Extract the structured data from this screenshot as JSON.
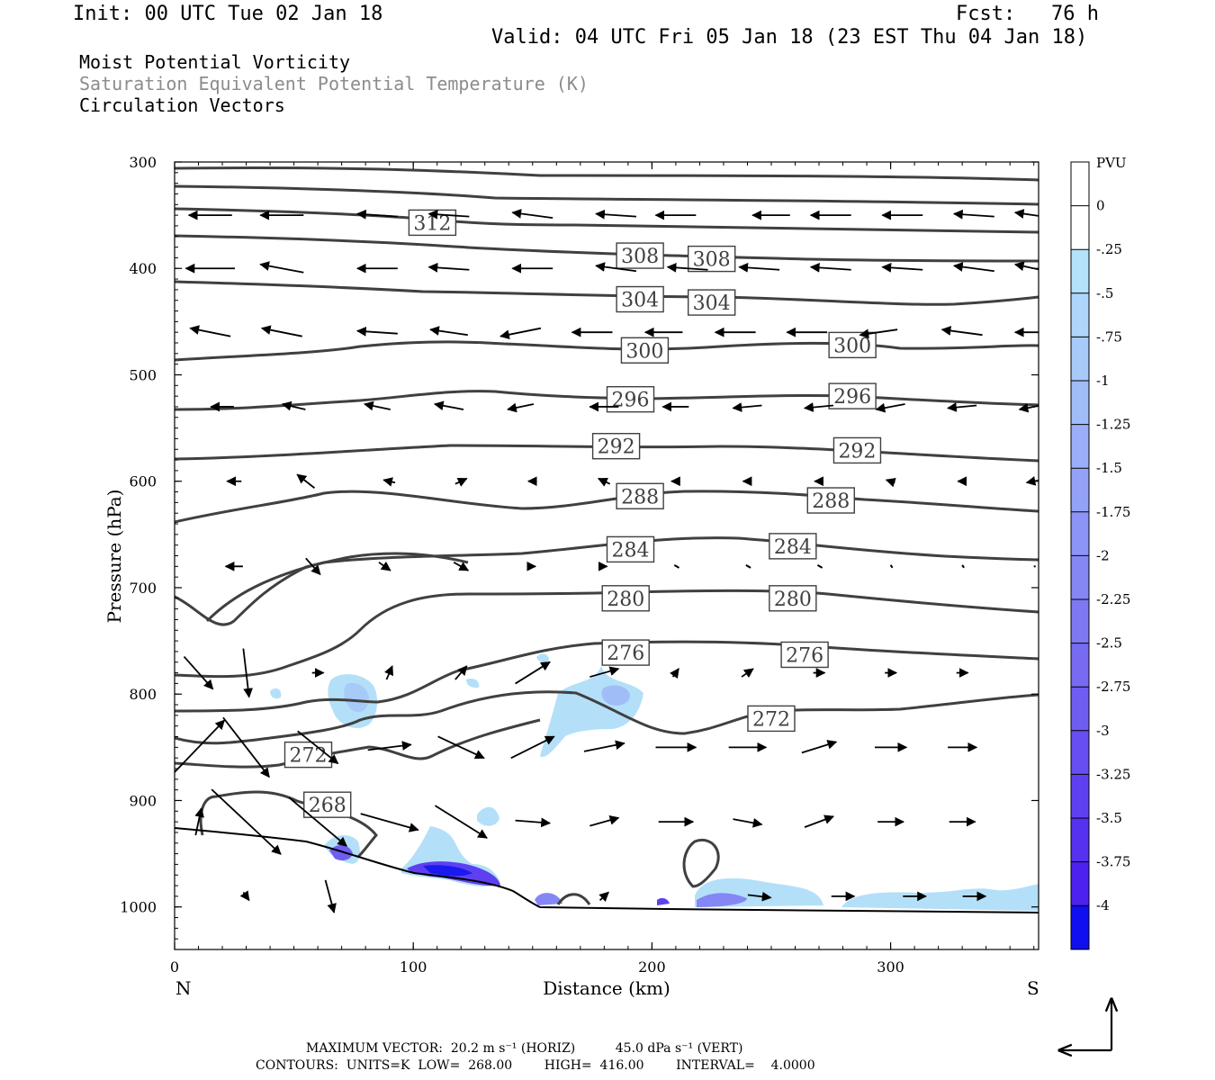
{
  "header": {
    "init": "Init: 00 UTC Tue 02 Jan 18",
    "fcst": "Fcst:   76 h",
    "valid": "Valid: 04 UTC Fri 05 Jan 18 (23 EST Thu 04 Jan 18)"
  },
  "titles": {
    "line1": "Moist Potential Vorticity",
    "line2": "Saturation Equivalent Potential Temperature (K)",
    "line3": "Circulation Vectors"
  },
  "footer": {
    "line1": "MAXIMUM VECTOR:  20.2 m s⁻¹ (HORIZ)          45.0 dPa s⁻¹ (VERT)",
    "line2": "CONTOURS:  UNITS=K  LOW=  268.00        HIGH=  416.00        INTERVAL=    4.0000"
  },
  "colors": {
    "contour": "#404040",
    "terrain": "#000000",
    "shade_light": "#b3e0f8",
    "shade_mid": "#8fb0f5",
    "shade_dark": "#1a1af0"
  },
  "chart_data": {
    "type": "cross-section",
    "xlabel": "Distance (km)",
    "ylabel": "Pressure (hPa)",
    "xlim": [
      0,
      362
    ],
    "ylim": [
      1040,
      300
    ],
    "x_ticks": [
      0,
      100,
      200,
      300
    ],
    "y_ticks": [
      300,
      400,
      500,
      600,
      700,
      800,
      900,
      1000
    ],
    "endpoints": {
      "left": "N",
      "right": "S"
    },
    "colorbar": {
      "title": "PVU",
      "labels": [
        "0",
        "-.25",
        "-.5",
        "-.75",
        "-1",
        "-1.25",
        "-1.5",
        "-1.75",
        "-2",
        "-2.25",
        "-2.5",
        "-2.75",
        "-3",
        "-3.25",
        "-3.5",
        "-3.75",
        "-4"
      ],
      "colors": [
        "#ffffff",
        "#ffffff",
        "#b4e2fb",
        "#aed6fa",
        "#a8caf9",
        "#a1bdf8",
        "#9aaff7",
        "#93a2f6",
        "#8c94f5",
        "#8587f4",
        "#7e79f3",
        "#776bf2",
        "#6f5df2",
        "#674ef1",
        "#5f40f0",
        "#5631ef",
        "#4c22ef",
        "#0f0fef"
      ]
    },
    "contour_labels": [
      {
        "text": "312",
        "x": 108,
        "p": 357
      },
      {
        "text": "308",
        "x": 195,
        "p": 388
      },
      {
        "text": "308",
        "x": 225,
        "p": 391
      },
      {
        "text": "304",
        "x": 195,
        "p": 429
      },
      {
        "text": "304",
        "x": 225,
        "p": 432
      },
      {
        "text": "300",
        "x": 197,
        "p": 477
      },
      {
        "text": "300",
        "x": 284,
        "p": 472
      },
      {
        "text": "296",
        "x": 191,
        "p": 523
      },
      {
        "text": "296",
        "x": 284,
        "p": 520
      },
      {
        "text": "292",
        "x": 185,
        "p": 567
      },
      {
        "text": "292",
        "x": 286,
        "p": 571
      },
      {
        "text": "288",
        "x": 195,
        "p": 614
      },
      {
        "text": "288",
        "x": 275,
        "p": 618
      },
      {
        "text": "284",
        "x": 191,
        "p": 664
      },
      {
        "text": "284",
        "x": 259,
        "p": 661
      },
      {
        "text": "280",
        "x": 189,
        "p": 710
      },
      {
        "text": "280",
        "x": 259,
        "p": 710
      },
      {
        "text": "276",
        "x": 189,
        "p": 761
      },
      {
        "text": "276",
        "x": 264,
        "p": 763
      },
      {
        "text": "272",
        "x": 250,
        "p": 823
      },
      {
        "text": "272",
        "x": 56,
        "p": 857
      },
      {
        "text": "268",
        "x": 64,
        "p": 904
      }
    ],
    "vector_rows": [
      {
        "p": 350,
        "x": [
          15,
          45,
          85,
          115,
          150,
          185,
          210,
          250,
          275,
          305,
          335,
          360
        ],
        "u": [
          -15,
          -15,
          -14,
          -14,
          -14,
          -14,
          -14,
          -13,
          -14,
          -14,
          -14,
          -13
        ],
        "w": [
          0,
          0,
          1,
          1,
          2,
          1,
          0,
          0,
          0,
          0,
          1,
          2
        ]
      },
      {
        "p": 400,
        "x": [
          15,
          45,
          85,
          115,
          150,
          185,
          215,
          245,
          275,
          305,
          335,
          360
        ],
        "u": [
          -17,
          -15,
          -14,
          -14,
          -14,
          -14,
          -14,
          -14,
          -14,
          -14,
          -14,
          -13
        ],
        "w": [
          0,
          3,
          0,
          1,
          0,
          2,
          1,
          1,
          1,
          1,
          2,
          3
        ]
      },
      {
        "p": 460,
        "x": [
          15,
          45,
          85,
          115,
          145,
          175,
          205,
          235,
          265,
          295,
          330,
          360
        ],
        "u": [
          -14,
          -14,
          -14,
          -13,
          -14,
          -14,
          -13,
          -14,
          -14,
          -13,
          -14,
          -13
        ],
        "w": [
          3,
          3,
          1,
          2,
          -3,
          0,
          0,
          0,
          0,
          -2,
          2,
          0
        ]
      },
      {
        "p": 530,
        "x": [
          20,
          50,
          85,
          115,
          145,
          180,
          210,
          240,
          270,
          300,
          330,
          360
        ],
        "u": [
          -8,
          -8,
          -9,
          -10,
          -9,
          -10,
          -9,
          -10,
          -10,
          -10,
          -10,
          -10
        ],
        "w": [
          0,
          2,
          2,
          2,
          -2,
          0,
          0,
          -1,
          -1,
          -2,
          -1,
          -2
        ]
      },
      {
        "p": 600,
        "x": [
          25,
          55,
          90,
          120,
          150,
          180,
          210,
          240,
          270,
          300,
          330,
          360
        ],
        "u": [
          -5,
          -6,
          -4,
          4,
          -3,
          -4,
          -3,
          -3,
          -3,
          -3,
          -3,
          -5
        ],
        "w": [
          0,
          5,
          1,
          2,
          0,
          2,
          0,
          0,
          0,
          1,
          0,
          -1
        ]
      },
      {
        "p": 680,
        "x": [
          25,
          58,
          88,
          120,
          150,
          180,
          210,
          240,
          270,
          300,
          330,
          360
        ],
        "u": [
          -6,
          5,
          4,
          5,
          2,
          2,
          1,
          1,
          1,
          0,
          0,
          0
        ],
        "w": [
          0,
          -6,
          -3,
          -3,
          0,
          0,
          -1,
          -1,
          -1,
          -1,
          -1,
          0
        ]
      },
      {
        "p": 780,
        "x": [
          10,
          30,
          60,
          90,
          120,
          150,
          180,
          210,
          240,
          270,
          300,
          330
        ],
        "u": [
          10,
          2,
          4,
          2,
          4,
          12,
          10,
          2,
          4,
          4,
          4,
          4
        ],
        "w": [
          -12,
          -18,
          0,
          5,
          5,
          8,
          3,
          3,
          3,
          0,
          0,
          0
        ]
      },
      {
        "p": 850,
        "x": [
          10,
          30,
          60,
          90,
          120,
          150,
          180,
          210,
          240,
          270,
          300,
          330
        ],
        "u": [
          18,
          16,
          14,
          15,
          16,
          15,
          14,
          14,
          13,
          12,
          11,
          10
        ],
        "w": [
          20,
          -22,
          -12,
          2,
          -8,
          8,
          3,
          0,
          0,
          4,
          0,
          0
        ]
      },
      {
        "p": 920,
        "x": [
          10,
          30,
          60,
          90,
          120,
          150,
          180,
          210,
          240,
          270,
          300,
          330
        ],
        "u": [
          2,
          24,
          20,
          20,
          18,
          12,
          10,
          12,
          10,
          10,
          9,
          9
        ],
        "w": [
          10,
          -24,
          -18,
          -6,
          -12,
          -1,
          3,
          0,
          -2,
          4,
          0,
          0
        ]
      },
      {
        "p": 990,
        "x": [
          30,
          65,
          180,
          245,
          280,
          310,
          335
        ],
        "u": [
          2,
          3,
          3,
          8,
          8,
          8,
          8
        ],
        "w": [
          -3,
          -12,
          3,
          -1,
          0,
          0,
          0
        ]
      }
    ]
  }
}
